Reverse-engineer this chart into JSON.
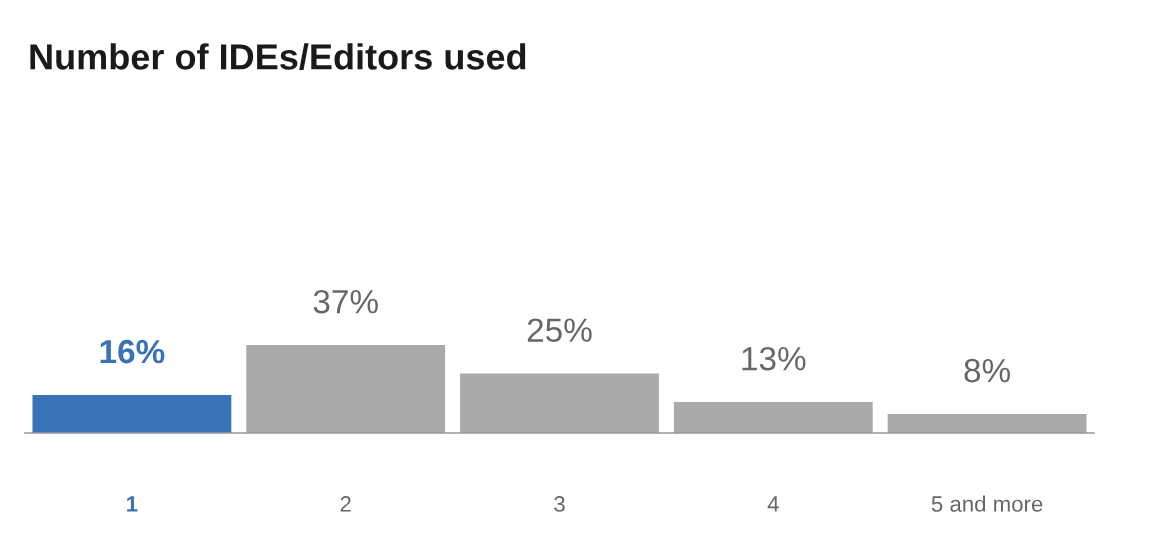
{
  "chart_data": {
    "type": "bar",
    "title": "Number of IDEs/Editors used",
    "categories": [
      "1",
      "2",
      "3",
      "4",
      "5 and more"
    ],
    "values": [
      16,
      37,
      25,
      13,
      8
    ],
    "colors": [
      "#3a72b8",
      "#aaaaaa",
      "#aaaaaa",
      "#aaaaaa",
      "#aaaaaa"
    ],
    "value_labels": [
      "16%",
      "37%",
      "25%",
      "13%",
      "8%"
    ]
  }
}
